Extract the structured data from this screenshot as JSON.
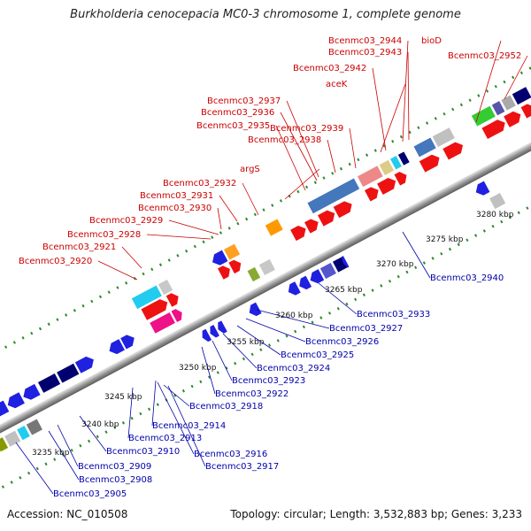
{
  "title": "Burkholderia cenocepacia MC0-3 chromosome 1, complete genome",
  "footer": {
    "accession": "Accession: NC_010508",
    "topology": "Topology: circular; Length: 3,532,883 bp; Genes: 3,233"
  },
  "colors": {
    "upper_label": "#cc0000",
    "lower_label": "#0000aa",
    "backbone": "#a0a0a0",
    "tick_dots": "#2a8a2a"
  },
  "ticks": [
    {
      "label": "3235 kbp"
    },
    {
      "label": "3240 kbp"
    },
    {
      "label": "3245 kbp"
    },
    {
      "label": "3250 kbp"
    },
    {
      "label": "3255 kbp"
    },
    {
      "label": "3260 kbp"
    },
    {
      "label": "3265 kbp"
    },
    {
      "label": "3270 kbp"
    },
    {
      "label": "3275 kbp"
    },
    {
      "label": "3280 kbp"
    }
  ],
  "upper_labels": [
    {
      "text": "Bcenmc03_2944"
    },
    {
      "text": "Bcenmc03_2943"
    },
    {
      "text": "bioD"
    },
    {
      "text": "Bcenmc03_2952"
    },
    {
      "text": "Bcenmc03_2942"
    },
    {
      "text": "aceK"
    },
    {
      "text": "Bcenmc03_2937"
    },
    {
      "text": "Bcenmc03_2936"
    },
    {
      "text": "Bcenmc03_2935"
    },
    {
      "text": "Bcenmc03_2939"
    },
    {
      "text": "Bcenmc03_2938"
    },
    {
      "text": "argS"
    },
    {
      "text": "Bcenmc03_2932"
    },
    {
      "text": "Bcenmc03_2931"
    },
    {
      "text": "Bcenmc03_2930"
    },
    {
      "text": "Bcenmc03_2929"
    },
    {
      "text": "Bcenmc03_2928"
    },
    {
      "text": "Bcenmc03_2921"
    },
    {
      "text": "Bcenmc03_2920"
    }
  ],
  "lower_labels": [
    {
      "text": "Bcenmc03_2940"
    },
    {
      "text": "Bcenmc03_2933"
    },
    {
      "text": "Bcenmc03_2927"
    },
    {
      "text": "Bcenmc03_2926"
    },
    {
      "text": "Bcenmc03_2925"
    },
    {
      "text": "Bcenmc03_2924"
    },
    {
      "text": "Bcenmc03_2923"
    },
    {
      "text": "Bcenmc03_2922"
    },
    {
      "text": "Bcenmc03_2918"
    },
    {
      "text": "Bcenmc03_2914"
    },
    {
      "text": "Bcenmc03_2913"
    },
    {
      "text": "Bcenmc03_2910"
    },
    {
      "text": "Bcenmc03_2916"
    },
    {
      "text": "Bcenmc03_2909"
    },
    {
      "text": "Bcenmc03_2917"
    },
    {
      "text": "Bcenmc03_2908"
    },
    {
      "text": "Bcenmc03_2905"
    }
  ]
}
